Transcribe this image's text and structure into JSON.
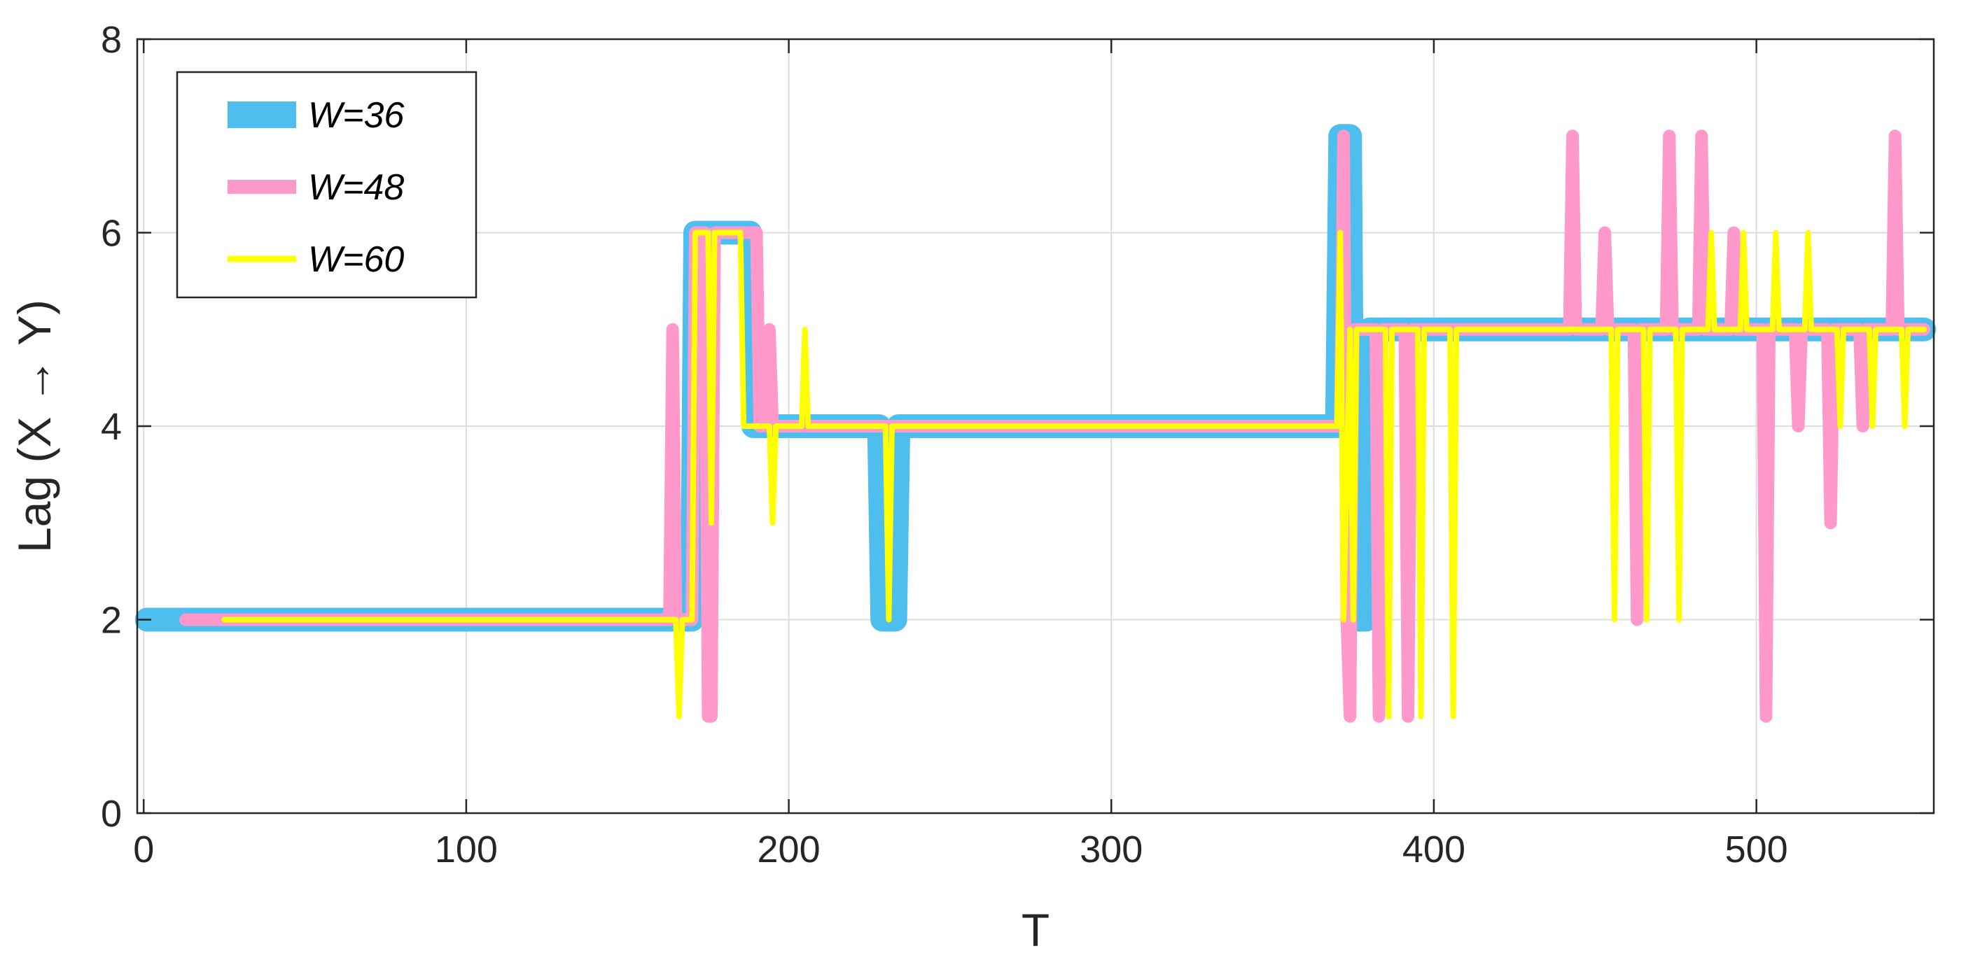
{
  "chart_data": {
    "type": "line",
    "title": "",
    "xlabel": "T",
    "ylabel": "Lag (X → Y)",
    "xlim": [
      -2,
      555
    ],
    "ylim": [
      0,
      8
    ],
    "x_ticks": [
      0,
      100,
      200,
      300,
      400,
      500
    ],
    "y_ticks": [
      0,
      2,
      4,
      6,
      8
    ],
    "grid": true,
    "legend_position": "top-left",
    "series": [
      {
        "name": "W=36",
        "color": "#4DBEEE",
        "points": [
          [
            1,
            2
          ],
          [
            170,
            2
          ],
          [
            171,
            6
          ],
          [
            188,
            6
          ],
          [
            189,
            4
          ],
          [
            228,
            4
          ],
          [
            229,
            2
          ],
          [
            233,
            2
          ],
          [
            234,
            4
          ],
          [
            370,
            4
          ],
          [
            371,
            7
          ],
          [
            374,
            7
          ],
          [
            375,
            2
          ],
          [
            379,
            2
          ],
          [
            380,
            5
          ],
          [
            552,
            5
          ]
        ]
      },
      {
        "name": "W=48",
        "color": "#FF99CC",
        "points": [
          [
            13,
            2
          ],
          [
            163,
            2
          ],
          [
            164,
            5
          ],
          [
            165,
            2
          ],
          [
            170,
            2
          ],
          [
            171,
            6
          ],
          [
            174,
            6
          ],
          [
            175,
            1
          ],
          [
            176,
            1
          ],
          [
            177,
            6
          ],
          [
            190,
            6
          ],
          [
            191,
            4
          ],
          [
            193,
            4
          ],
          [
            194,
            5
          ],
          [
            195,
            4
          ],
          [
            371,
            4
          ],
          [
            372,
            7
          ],
          [
            373,
            2
          ],
          [
            374,
            1
          ],
          [
            375,
            5
          ],
          [
            382,
            5
          ],
          [
            383,
            1
          ],
          [
            384,
            5
          ],
          [
            391,
            5
          ],
          [
            392,
            1
          ],
          [
            393,
            5
          ],
          [
            442,
            5
          ],
          [
            443,
            7
          ],
          [
            444,
            5
          ],
          [
            452,
            5
          ],
          [
            453,
            6
          ],
          [
            454,
            5
          ],
          [
            462,
            5
          ],
          [
            463,
            2
          ],
          [
            464,
            5
          ],
          [
            472,
            5
          ],
          [
            473,
            7
          ],
          [
            474,
            5
          ],
          [
            482,
            5
          ],
          [
            483,
            7
          ],
          [
            484,
            5
          ],
          [
            492,
            5
          ],
          [
            493,
            6
          ],
          [
            494,
            5
          ],
          [
            502,
            5
          ],
          [
            503,
            1
          ],
          [
            504,
            5
          ],
          [
            512,
            5
          ],
          [
            513,
            4
          ],
          [
            514,
            5
          ],
          [
            522,
            5
          ],
          [
            523,
            3
          ],
          [
            524,
            5
          ],
          [
            532,
            5
          ],
          [
            533,
            4
          ],
          [
            534,
            5
          ],
          [
            542,
            5
          ],
          [
            543,
            7
          ],
          [
            544,
            5
          ],
          [
            552,
            5
          ]
        ]
      },
      {
        "name": "W=60",
        "color": "#FFFF00",
        "points": [
          [
            25,
            2
          ],
          [
            165,
            2
          ],
          [
            166,
            1
          ],
          [
            167,
            2
          ],
          [
            170,
            2
          ],
          [
            171,
            6
          ],
          [
            175,
            6
          ],
          [
            176,
            3
          ],
          [
            177,
            6
          ],
          [
            185,
            6
          ],
          [
            186,
            4
          ],
          [
            194,
            4
          ],
          [
            195,
            3
          ],
          [
            196,
            4
          ],
          [
            204,
            4
          ],
          [
            205,
            5
          ],
          [
            206,
            4
          ],
          [
            230,
            4
          ],
          [
            231,
            2
          ],
          [
            232,
            4
          ],
          [
            370,
            4
          ],
          [
            371,
            6
          ],
          [
            372,
            2
          ],
          [
            374,
            5
          ],
          [
            375,
            2
          ],
          [
            376,
            5
          ],
          [
            385,
            5
          ],
          [
            386,
            1
          ],
          [
            387,
            5
          ],
          [
            395,
            5
          ],
          [
            396,
            1
          ],
          [
            397,
            5
          ],
          [
            405,
            5
          ],
          [
            406,
            1
          ],
          [
            407,
            5
          ],
          [
            455,
            5
          ],
          [
            456,
            2
          ],
          [
            457,
            5
          ],
          [
            465,
            5
          ],
          [
            466,
            2
          ],
          [
            467,
            5
          ],
          [
            475,
            5
          ],
          [
            476,
            2
          ],
          [
            477,
            5
          ],
          [
            485,
            5
          ],
          [
            486,
            6
          ],
          [
            487,
            5
          ],
          [
            495,
            5
          ],
          [
            496,
            6
          ],
          [
            497,
            5
          ],
          [
            505,
            5
          ],
          [
            506,
            6
          ],
          [
            507,
            5
          ],
          [
            515,
            5
          ],
          [
            516,
            6
          ],
          [
            517,
            5
          ],
          [
            525,
            5
          ],
          [
            526,
            4
          ],
          [
            527,
            5
          ],
          [
            535,
            5
          ],
          [
            536,
            4
          ],
          [
            537,
            5
          ],
          [
            545,
            5
          ],
          [
            546,
            4
          ],
          [
            547,
            5
          ],
          [
            552,
            5
          ]
        ]
      }
    ]
  }
}
